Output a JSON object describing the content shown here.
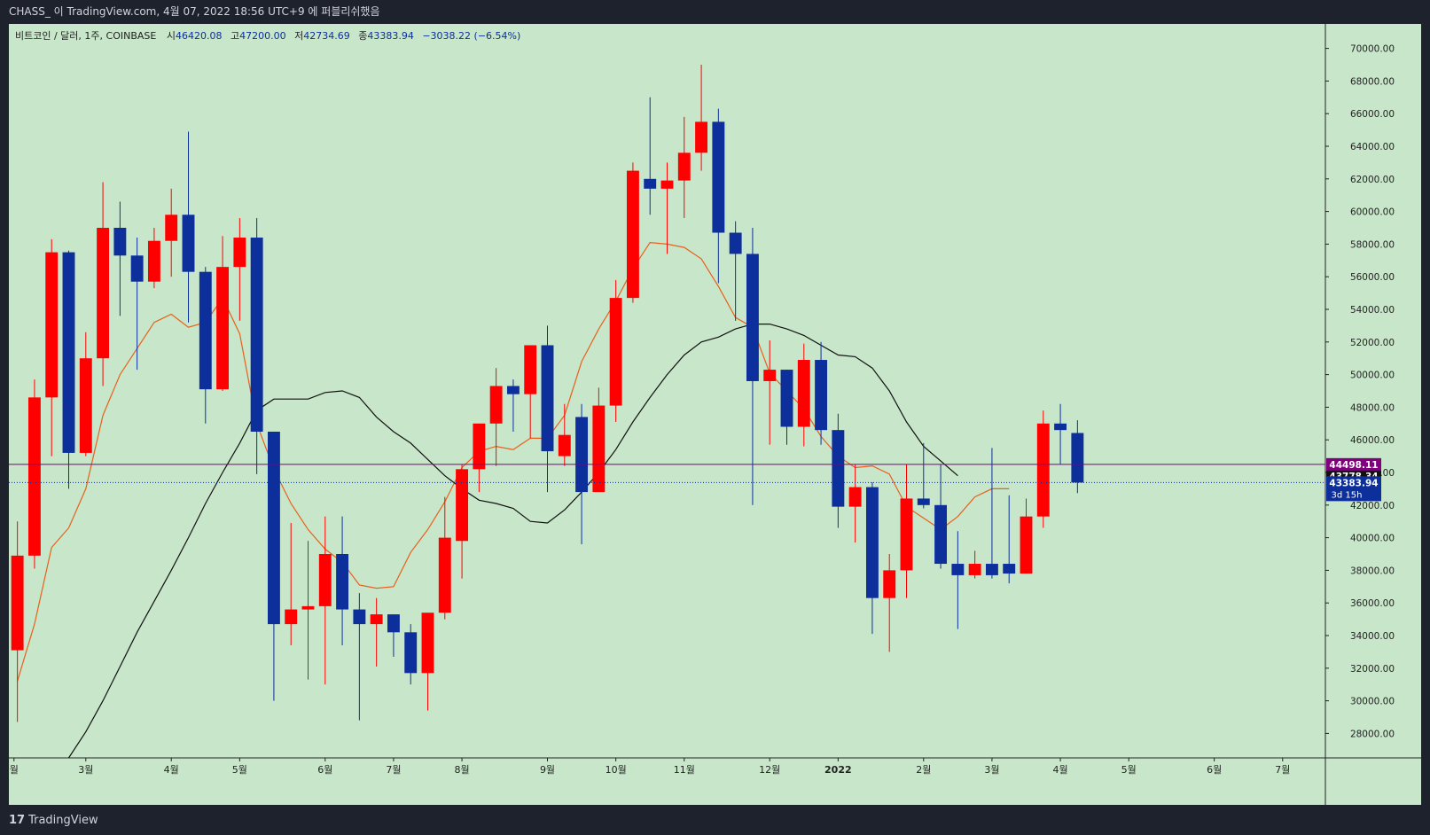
{
  "header": {
    "publish_line": "CHASS_ 이 TradingView.com, 4월 07, 2022 18:56 UTC+9 에 퍼블리쉬했음"
  },
  "footer": {
    "brand": "TradingView"
  },
  "legend": {
    "symbol": "비트코인 / 달러, 1주, COINBASE",
    "open_label": "시",
    "open": "46420.08",
    "high_label": "고",
    "high": "47200.00",
    "low_label": "저",
    "low": "42734.69",
    "close_label": "종",
    "close": "43383.94",
    "change": "−3038.22 (−6.54%)"
  },
  "colors": {
    "background": "#c8e6c9",
    "up": "#ff0000",
    "down": "#0d2f9c",
    "ma_fast": "#e8601c",
    "ma_slow": "#111111",
    "marker_line": "#800080",
    "frame": "#1e222d"
  },
  "price_labels": {
    "marker": {
      "value": 44498.11,
      "text": "44498.11"
    },
    "hidden": {
      "value": 43778.34,
      "text": "43778.34"
    },
    "last": {
      "value": 43383.94,
      "text": "43383.94",
      "countdown": "3d 15h"
    }
  },
  "chart_data": {
    "type": "candlestick",
    "title": "",
    "grid": false,
    "y_axis": {
      "position": "right",
      "range": [
        26500,
        71500
      ],
      "ticks": [
        28000,
        30000,
        32000,
        34000,
        36000,
        38000,
        40000,
        42000,
        44000,
        46000,
        48000,
        50000,
        52000,
        54000,
        56000,
        58000,
        60000,
        62000,
        64000,
        66000,
        68000,
        70000
      ],
      "tick_labels": [
        "28000.00",
        "30000.00",
        "32000.00",
        "34000.00",
        "36000.00",
        "38000.00",
        "40000.00",
        "42000.00",
        "44000.00",
        "46000.00",
        "48000.00",
        "50000.00",
        "52000.00",
        "54000.00",
        "56000.00",
        "58000.00",
        "60000.00",
        "62000.00",
        "64000.00",
        "66000.00",
        "68000.00",
        "70000.00"
      ]
    },
    "x_axis": {
      "week_range": [
        -0.5,
        76.5
      ],
      "labels": [
        {
          "text": "월",
          "week": -0.2
        },
        {
          "text": "3월",
          "week": 4
        },
        {
          "text": "4월",
          "week": 9
        },
        {
          "text": "5월",
          "week": 13
        },
        {
          "text": "6월",
          "week": 18
        },
        {
          "text": "7월",
          "week": 22
        },
        {
          "text": "8월",
          "week": 26
        },
        {
          "text": "9월",
          "week": 31
        },
        {
          "text": "10월",
          "week": 35
        },
        {
          "text": "11월",
          "week": 39
        },
        {
          "text": "12월",
          "week": 44
        },
        {
          "text": "2022",
          "week": 48
        },
        {
          "text": "2월",
          "week": 53
        },
        {
          "text": "3월",
          "week": 57
        },
        {
          "text": "4월",
          "week": 61
        },
        {
          "text": "5월",
          "week": 65
        },
        {
          "text": "6월",
          "week": 70
        },
        {
          "text": "7월",
          "week": 74
        }
      ]
    },
    "candles": [
      {
        "o": 33100,
        "h": 41000,
        "l": 28700,
        "c": 38900
      },
      {
        "o": 38900,
        "h": 49700,
        "l": 38100,
        "c": 48600
      },
      {
        "o": 48600,
        "h": 58300,
        "l": 45000,
        "c": 57500
      },
      {
        "o": 57500,
        "h": 57600,
        "l": 43000,
        "c": 45200
      },
      {
        "o": 45200,
        "h": 52600,
        "l": 45000,
        "c": 51000
      },
      {
        "o": 51000,
        "h": 61800,
        "l": 49300,
        "c": 59000
      },
      {
        "o": 59000,
        "h": 60600,
        "l": 53600,
        "c": 57300
      },
      {
        "o": 57300,
        "h": 58400,
        "l": 50300,
        "c": 55700
      },
      {
        "o": 55700,
        "h": 59000,
        "l": 55300,
        "c": 58200
      },
      {
        "o": 58200,
        "h": 61400,
        "l": 56000,
        "c": 59800
      },
      {
        "o": 59800,
        "h": 64900,
        "l": 53200,
        "c": 56300
      },
      {
        "o": 56300,
        "h": 56600,
        "l": 47000,
        "c": 49100
      },
      {
        "o": 49100,
        "h": 58500,
        "l": 49000,
        "c": 56600
      },
      {
        "o": 56600,
        "h": 59600,
        "l": 53300,
        "c": 58400
      },
      {
        "o": 58400,
        "h": 59600,
        "l": 43900,
        "c": 46500
      },
      {
        "o": 46500,
        "h": 46500,
        "l": 30000,
        "c": 34700
      },
      {
        "o": 34700,
        "h": 40900,
        "l": 33400,
        "c": 35600
      },
      {
        "o": 35600,
        "h": 39800,
        "l": 31300,
        "c": 35800
      },
      {
        "o": 35800,
        "h": 41300,
        "l": 31000,
        "c": 39000
      },
      {
        "o": 39000,
        "h": 41300,
        "l": 33400,
        "c": 35600
      },
      {
        "o": 35600,
        "h": 36600,
        "l": 28800,
        "c": 34700
      },
      {
        "o": 34700,
        "h": 36300,
        "l": 32100,
        "c": 35300
      },
      {
        "o": 35300,
        "h": 35300,
        "l": 32700,
        "c": 34200
      },
      {
        "o": 34200,
        "h": 34700,
        "l": 31000,
        "c": 31700
      },
      {
        "o": 31700,
        "h": 35400,
        "l": 29400,
        "c": 35400
      },
      {
        "o": 35400,
        "h": 42500,
        "l": 35000,
        "c": 40000
      },
      {
        "o": 39800,
        "h": 44500,
        "l": 37500,
        "c": 44200
      },
      {
        "o": 44200,
        "h": 46800,
        "l": 42800,
        "c": 47000
      },
      {
        "o": 47000,
        "h": 50400,
        "l": 44400,
        "c": 49300
      },
      {
        "o": 49300,
        "h": 49700,
        "l": 46500,
        "c": 48800
      },
      {
        "o": 48800,
        "h": 51800,
        "l": 46100,
        "c": 51800
      },
      {
        "o": 51800,
        "h": 53000,
        "l": 42800,
        "c": 45300
      },
      {
        "o": 45000,
        "h": 48200,
        "l": 44400,
        "c": 46300
      },
      {
        "o": 47400,
        "h": 48200,
        "l": 39600,
        "c": 42800
      },
      {
        "o": 42800,
        "h": 49200,
        "l": 42800,
        "c": 48100
      },
      {
        "o": 48100,
        "h": 55800,
        "l": 47100,
        "c": 54700
      },
      {
        "o": 54700,
        "h": 63000,
        "l": 54400,
        "c": 62500
      },
      {
        "o": 62000,
        "h": 67000,
        "l": 59800,
        "c": 61400
      },
      {
        "o": 61400,
        "h": 63000,
        "l": 57400,
        "c": 61900
      },
      {
        "o": 61900,
        "h": 65800,
        "l": 59600,
        "c": 63600
      },
      {
        "o": 63600,
        "h": 69000,
        "l": 62500,
        "c": 65500
      },
      {
        "o": 65500,
        "h": 66300,
        "l": 55600,
        "c": 58700
      },
      {
        "o": 58700,
        "h": 59400,
        "l": 53300,
        "c": 57400
      },
      {
        "o": 57400,
        "h": 59000,
        "l": 42000,
        "c": 49600
      },
      {
        "o": 49600,
        "h": 52100,
        "l": 45700,
        "c": 50300
      },
      {
        "o": 50300,
        "h": 50300,
        "l": 45700,
        "c": 46800
      },
      {
        "o": 46800,
        "h": 51900,
        "l": 45600,
        "c": 50900
      },
      {
        "o": 50900,
        "h": 52000,
        "l": 45700,
        "c": 46600
      },
      {
        "o": 46600,
        "h": 47600,
        "l": 40600,
        "c": 41900
      },
      {
        "o": 41900,
        "h": 44500,
        "l": 39700,
        "c": 43100
      },
      {
        "o": 43100,
        "h": 43400,
        "l": 34100,
        "c": 36300
      },
      {
        "o": 36300,
        "h": 39000,
        "l": 33000,
        "c": 38000
      },
      {
        "o": 38000,
        "h": 44500,
        "l": 36300,
        "c": 42400
      },
      {
        "o": 42400,
        "h": 45800,
        "l": 41800,
        "c": 42000
      },
      {
        "o": 42000,
        "h": 44500,
        "l": 38100,
        "c": 38400
      },
      {
        "o": 38400,
        "h": 40400,
        "l": 34400,
        "c": 37700
      },
      {
        "o": 37700,
        "h": 39200,
        "l": 37500,
        "c": 38400
      },
      {
        "o": 38400,
        "h": 45500,
        "l": 37500,
        "c": 37700
      },
      {
        "o": 38400,
        "h": 42600,
        "l": 37200,
        "c": 37800
      },
      {
        "o": 37800,
        "h": 42400,
        "l": 37800,
        "c": 41300
      },
      {
        "o": 41300,
        "h": 47800,
        "l": 40600,
        "c": 47000
      },
      {
        "o": 47000,
        "h": 48200,
        "l": 44500,
        "c": 46600
      },
      {
        "o": 46420.08,
        "h": 47200,
        "l": 42734.69,
        "c": 43383.94
      }
    ],
    "series": [
      {
        "name": "",
        "color": "#e8601c",
        "values": [
          31200,
          34700,
          39400,
          40600,
          43000,
          47500,
          50000,
          51600,
          53200,
          53700,
          52900,
          53200,
          54700,
          52500,
          47000,
          44200,
          42100,
          40500,
          39300,
          38500,
          37100,
          36900,
          37000,
          39100,
          40500,
          42200,
          44300,
          45300,
          45600,
          45400,
          46100,
          46100,
          47500,
          50800,
          52800,
          54500,
          56500,
          58100,
          58000,
          57800,
          57100,
          55400,
          53500,
          52900,
          50100,
          49000,
          47900,
          46200,
          45000,
          44300,
          44400,
          43900,
          41900,
          41200,
          40500,
          41300,
          42500,
          43000,
          43000
        ]
      },
      {
        "name": "",
        "color": "#111111",
        "values": [
          26500,
          28100,
          30000,
          32100,
          34200,
          36100,
          38000,
          40000,
          42100,
          44000,
          45800,
          47800,
          48500,
          48500,
          48500,
          48900,
          49000,
          48600,
          47400,
          46500,
          45800,
          44800,
          43800,
          43000,
          42300,
          42100,
          41800,
          41000,
          40900,
          41700,
          42800,
          44000,
          45400,
          47100,
          48600,
          50000,
          51200,
          52000,
          52300,
          52800,
          53100,
          53100,
          52800,
          52400,
          51800,
          51200,
          51100,
          50400,
          49000,
          47100,
          45600,
          44700,
          43800
        ]
      }
    ],
    "series_start_week": [
      0,
      3
    ]
  }
}
